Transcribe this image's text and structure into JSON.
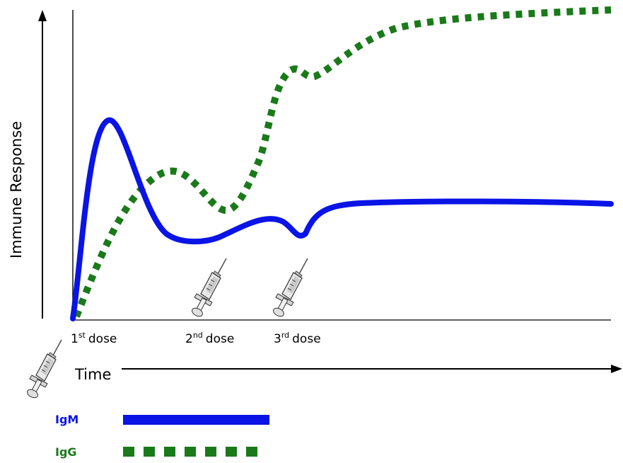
{
  "axes": {
    "y_label": "Immune Response",
    "x_label": "Time"
  },
  "doses": [
    {
      "number": "1",
      "suffix": "st",
      "word": "dose"
    },
    {
      "number": "2",
      "suffix": "nd",
      "word": "dose"
    },
    {
      "number": "3",
      "suffix": "rd",
      "word": "dose"
    }
  ],
  "legend": {
    "igm": {
      "label": "IgM",
      "color": "#0a14e6",
      "style": "solid"
    },
    "igg": {
      "label": "IgG",
      "color": "#1a7a1a",
      "style": "dotted"
    }
  },
  "icons": {
    "syringe": "syringe-icon"
  }
}
